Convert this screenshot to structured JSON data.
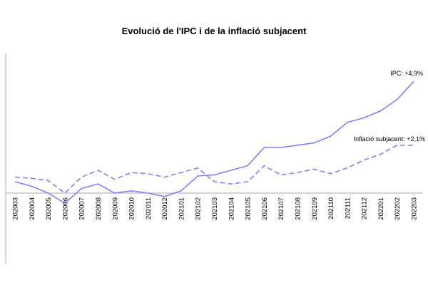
{
  "chart_data": {
    "type": "line",
    "title": "Evolució de l'IPC i de la inflació subjacent",
    "xlabel": "",
    "ylabel": "",
    "ylim": [
      -3,
      6
    ],
    "grid": false,
    "color": "#8080ff",
    "categories": [
      "202003",
      "202004",
      "202005",
      "202006",
      "202007",
      "202008",
      "202009",
      "202010",
      "202011",
      "202012",
      "202101",
      "202102",
      "202103",
      "202104",
      "202105",
      "202106",
      "202107",
      "202108",
      "202109",
      "202110",
      "202111",
      "202112",
      "202201",
      "202202",
      "202203"
    ],
    "series": [
      {
        "name": "IPC",
        "style": "solid",
        "values": [
          0.5,
          0.3,
          0.0,
          -0.45,
          0.2,
          0.4,
          0.0,
          0.1,
          0.0,
          -0.15,
          0.1,
          0.75,
          0.8,
          1.0,
          1.2,
          2.0,
          2.0,
          2.1,
          2.2,
          2.5,
          3.1,
          3.3,
          3.6,
          4.1,
          4.9
        ]
      },
      {
        "name": "Inflació subjacent",
        "style": "dashed",
        "values": [
          0.7,
          0.65,
          0.55,
          0.0,
          0.7,
          1.0,
          0.6,
          0.9,
          0.85,
          0.7,
          0.9,
          1.1,
          0.5,
          0.4,
          0.5,
          1.2,
          0.8,
          0.9,
          1.05,
          0.85,
          1.1,
          1.45,
          1.7,
          2.1,
          2.1
        ]
      }
    ],
    "annotations": [
      "IPC: +4,9%",
      "Inflació subjacent: +2,1%"
    ]
  }
}
